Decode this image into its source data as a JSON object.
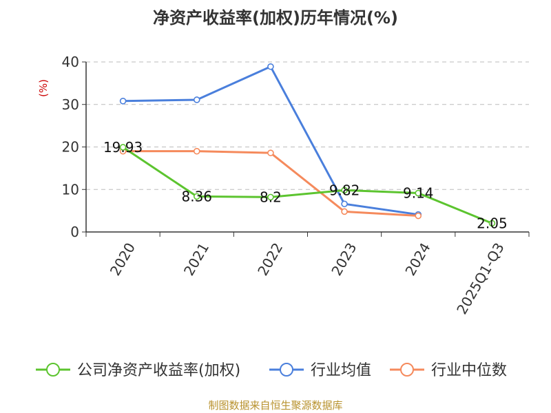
{
  "chart_data": {
    "type": "line",
    "title": "净资产收益率(加权)历年情况(%)",
    "ylabel": "(%)",
    "ylim": [
      0,
      40
    ],
    "yticks": [
      0,
      10,
      20,
      30,
      40
    ],
    "categories": [
      "2020",
      "2021",
      "2022",
      "2023",
      "2024",
      "2025Q1-Q3"
    ],
    "grid": true,
    "legend_position": "bottom",
    "series": [
      {
        "name": "公司净资产收益率(加权)",
        "color": "#5cc42f",
        "values": [
          19.93,
          8.36,
          8.2,
          9.82,
          9.14,
          2.05
        ],
        "labels": [
          "19.93",
          "8.36",
          "8.2",
          "9.82",
          "9.14",
          "2.05"
        ]
      },
      {
        "name": "行业均值",
        "color": "#4a7fdc",
        "values": [
          30.8,
          31.1,
          38.9,
          6.6,
          4.1,
          null
        ]
      },
      {
        "name": "行业中位数",
        "color": "#f58a5c",
        "values": [
          19.0,
          19.0,
          18.6,
          4.8,
          3.8,
          null
        ]
      }
    ]
  },
  "source": "制图数据来自恒生聚源数据库"
}
